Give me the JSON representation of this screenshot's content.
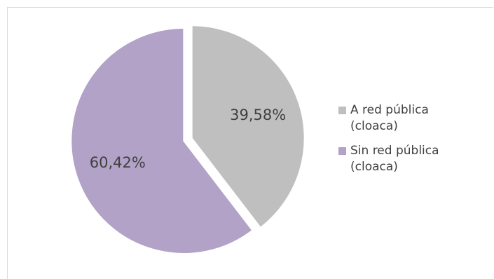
{
  "chart_data": {
    "type": "pie",
    "categories": [
      "A red pública (cloaca)",
      "Sin red pública (cloaca)"
    ],
    "values": [
      39.58,
      60.42
    ],
    "data_labels": [
      "39,58%",
      "60,42%"
    ],
    "colors": [
      "#bfbfbf",
      "#b2a2c7"
    ],
    "legend": {
      "position": "right",
      "entries": [
        {
          "label": "A red pública\n(cloaca)",
          "color": "#bfbfbf"
        },
        {
          "label": "Sin red pública\n(cloaca)",
          "color": "#b2a2c7"
        }
      ]
    },
    "title": ""
  }
}
